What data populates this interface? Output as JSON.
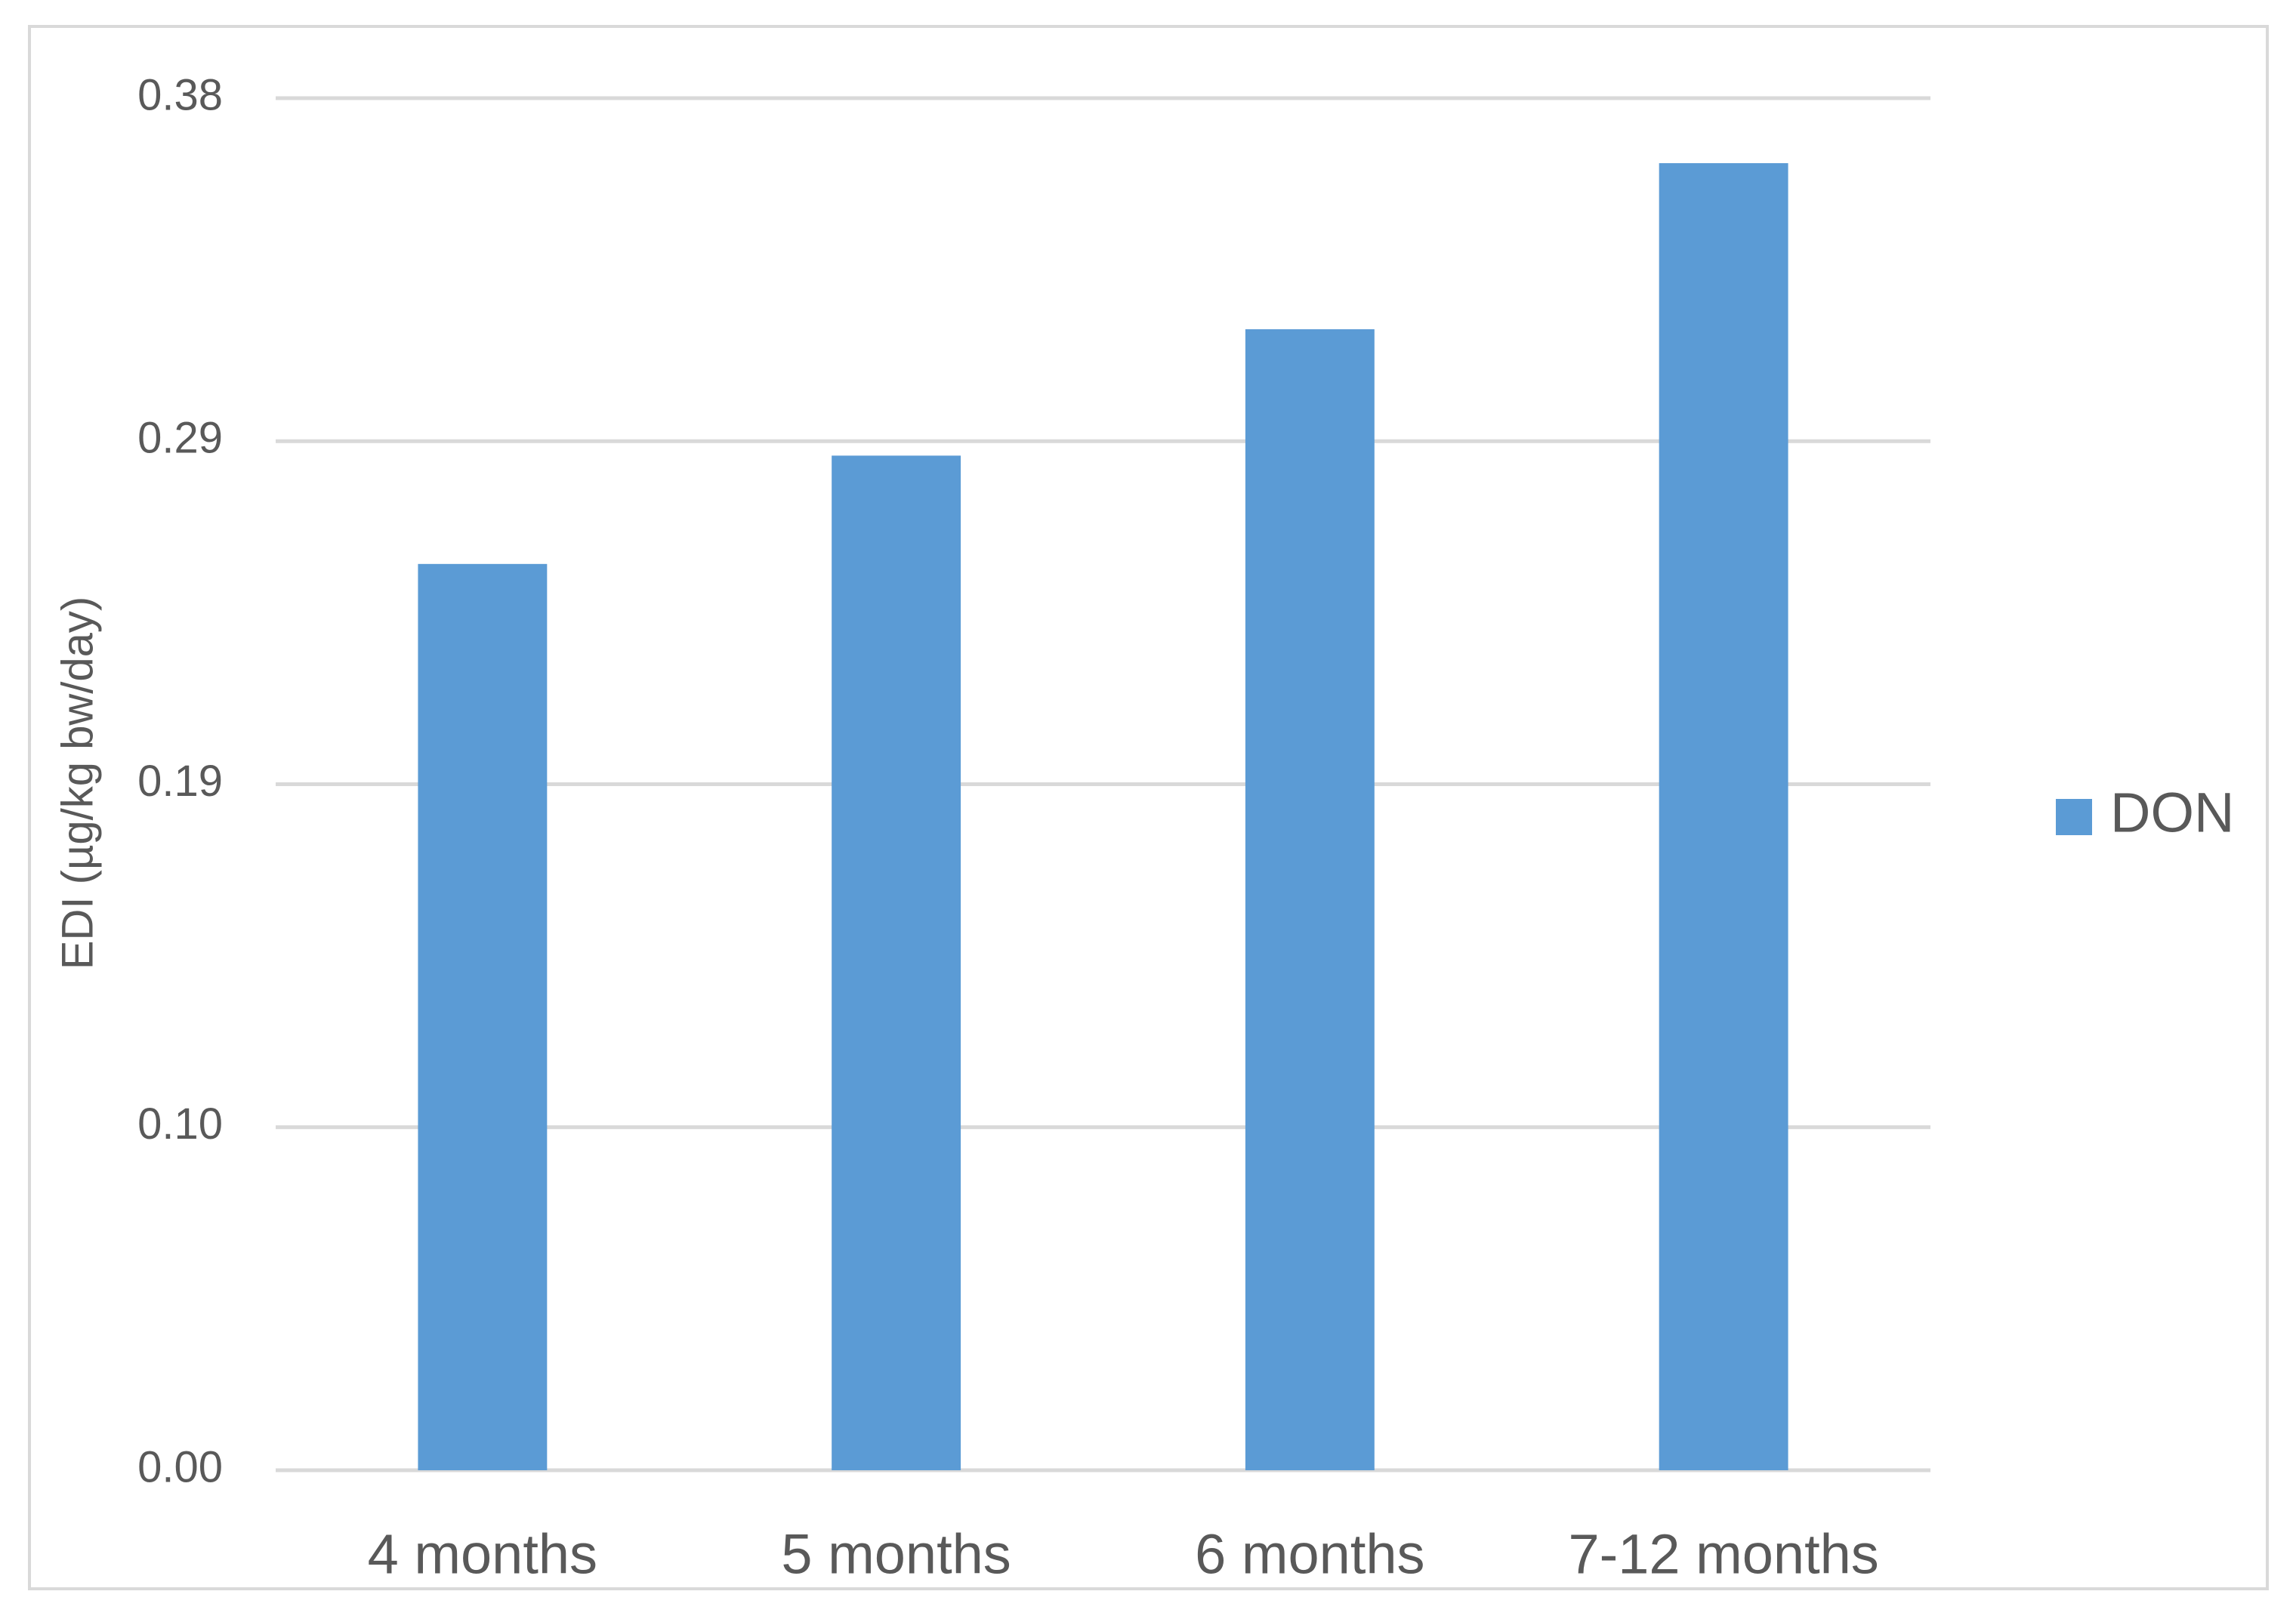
{
  "chart_data": {
    "type": "bar",
    "y_label": "EDI (µg/kg bw/day)",
    "categories": [
      "4 months",
      "5 months",
      "6 months",
      "7-12 months"
    ],
    "series": [
      {
        "name": "DON",
        "color": "#5b9bd5",
        "values": [
          0.251,
          0.281,
          0.316,
          0.362
        ]
      }
    ],
    "ylim": [
      0,
      0.38
    ],
    "yticks": [
      {
        "value": 0,
        "label": "0.00"
      },
      {
        "value": 0.095,
        "label": "0.10"
      },
      0.19,
      {
        "value": 0.285,
        "label": "0.29"
      },
      0.38
    ],
    "grid": true,
    "legend": "right"
  }
}
